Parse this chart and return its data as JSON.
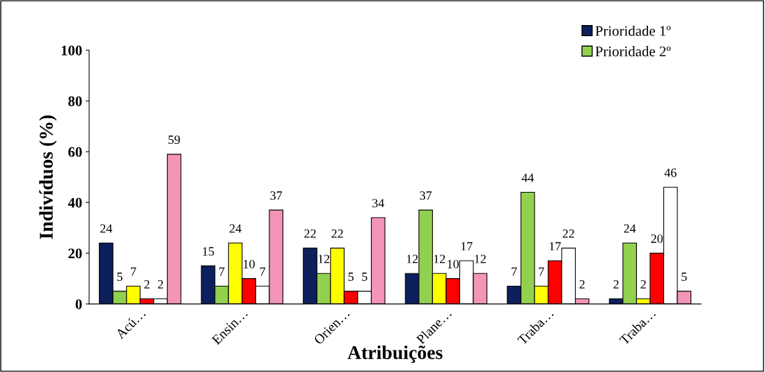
{
  "chart_data": {
    "type": "bar",
    "xlabel": "Atribuições",
    "ylabel": "Indivíduos (%)",
    "categories": [
      "Acú…",
      "Ensin…",
      "Orien…",
      "Plane…",
      "Traba…",
      "Traba…"
    ],
    "series": [
      {
        "name": "Prioridade 1º",
        "color": "#0d1f5c",
        "values": [
          24,
          15,
          22,
          12,
          7,
          2
        ]
      },
      {
        "name": "Prioridade 2º",
        "color": "#92d050",
        "values": [
          5,
          7,
          12,
          37,
          44,
          24
        ]
      },
      {
        "color": "#ffff00",
        "values": [
          7,
          24,
          22,
          12,
          7,
          2
        ]
      },
      {
        "color": "#ff0000",
        "values": [
          2,
          10,
          5,
          10,
          17,
          20
        ]
      },
      {
        "color": "#ffffff",
        "values": [
          2,
          7,
          5,
          17,
          22,
          46
        ]
      },
      {
        "color": "#f295b8",
        "values": [
          59,
          37,
          34,
          12,
          2,
          5
        ]
      }
    ],
    "ylim": [
      0,
      100
    ],
    "yticks": [
      0,
      20,
      40,
      60,
      80,
      100
    ],
    "grid": false,
    "legend": "top right",
    "data_labels": true
  }
}
